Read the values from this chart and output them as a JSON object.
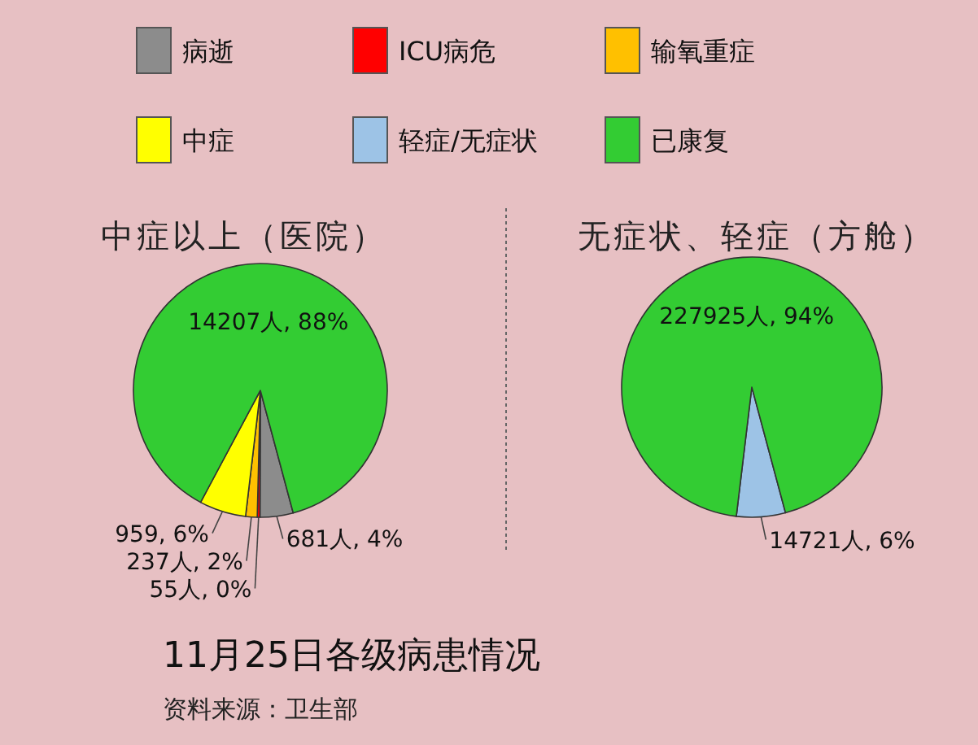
{
  "chart_data": {
    "type": "pie",
    "title": "11月25日各级病患情况",
    "categories": [
      "病逝",
      "ICU病危",
      "输氧重症",
      "中症",
      "轻症/无症状",
      "已康复"
    ],
    "colors": [
      "#8c8c8c",
      "#ff0000",
      "#ffc000",
      "#ffff00",
      "#9dc3e6",
      "#33cc33"
    ],
    "series": [
      {
        "name": "中症以上（医院）",
        "values": [
          681,
          55,
          237,
          959,
          null,
          14207
        ],
        "value_labels": [
          "681人, 4%",
          "55人, 0%",
          "237人, 2%",
          "959, 6%",
          null,
          "14207人, 88%"
        ]
      },
      {
        "name": "无症状、轻症（方舱）",
        "values": [
          null,
          null,
          null,
          null,
          14721,
          227925
        ],
        "value_labels": [
          null,
          null,
          null,
          null,
          "14721人, 6%",
          "227925人, 94%"
        ]
      }
    ],
    "legend": "top",
    "annotations": [
      "资料来源：卫生部"
    ]
  }
}
